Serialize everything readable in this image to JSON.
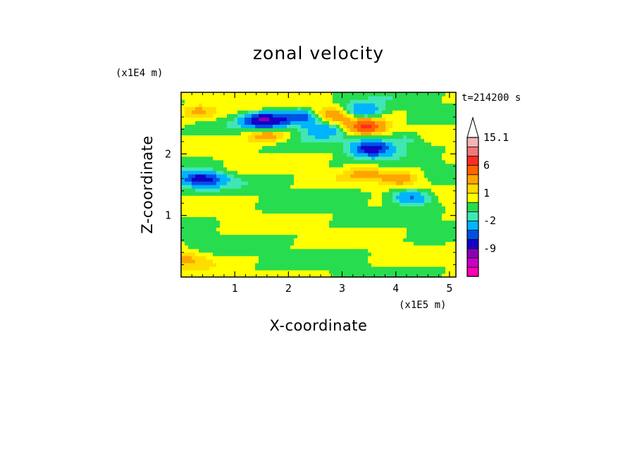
{
  "chart_data": {
    "type": "heatmap",
    "title": "zonal velocity",
    "xlabel": "X-coordinate",
    "ylabel": "Z-coordinate",
    "x_multiplier": "(x1E5 m)",
    "y_multiplier": "(x1E4 m)",
    "time_label": "t=214200 s",
    "xlim": [
      0,
      5.12
    ],
    "ylim": [
      0,
      3.0
    ],
    "x_ticks": [
      1,
      2,
      3,
      4,
      5
    ],
    "y_ticks": [
      1,
      2
    ],
    "colorbar": {
      "levels": [
        -15,
        -12,
        -9,
        -6,
        -4,
        -2,
        -1,
        0,
        1,
        2,
        4,
        6,
        9,
        12,
        15.1
      ],
      "labels": [
        "15.1",
        "6",
        "1",
        "-2",
        "-9"
      ],
      "colors": [
        "#ff00b4",
        "#c800c8",
        "#8c00b4",
        "#1400c8",
        "#0050e6",
        "#00b4ff",
        "#40e6b4",
        "#28dc50",
        "#ffff00",
        "#ffdc00",
        "#ffa500",
        "#ff6400",
        "#ff2d1e",
        "#f07878",
        "#f5b4b4"
      ],
      "extend": "max"
    },
    "features": [
      {
        "x": 1.55,
        "z": 2.55,
        "u": -9
      },
      {
        "x": 2.2,
        "z": 2.6,
        "u": -6
      },
      {
        "x": 2.65,
        "z": 2.4,
        "u": -4
      },
      {
        "x": 3.4,
        "z": 2.7,
        "u": -4
      },
      {
        "x": 3.55,
        "z": 2.1,
        "u": -8
      },
      {
        "x": 4.2,
        "z": 2.25,
        "u": -2
      },
      {
        "x": 4.3,
        "z": 1.3,
        "u": -5
      },
      {
        "x": 0.55,
        "z": 1.6,
        "u": -3
      },
      {
        "x": 0.3,
        "z": 1.6,
        "u": -5
      },
      {
        "x": 3.45,
        "z": 2.45,
        "u": 6
      },
      {
        "x": 2.8,
        "z": 2.65,
        "u": 3
      },
      {
        "x": 0.3,
        "z": 2.7,
        "u": 3
      },
      {
        "x": 1.6,
        "z": 2.3,
        "u": 3
      },
      {
        "x": 4.1,
        "z": 1.6,
        "u": 3
      },
      {
        "x": 3.4,
        "z": 1.7,
        "u": 2
      },
      {
        "x": 0.1,
        "z": 0.3,
        "u": 2
      }
    ]
  }
}
